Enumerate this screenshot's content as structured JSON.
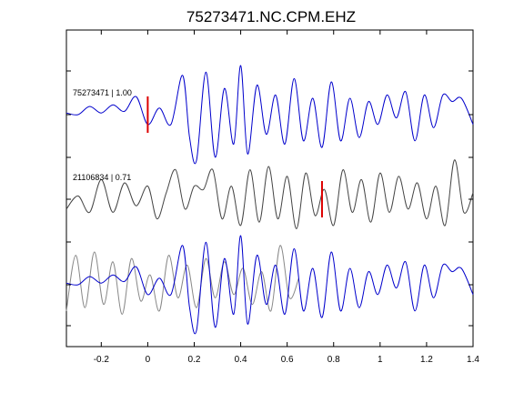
{
  "chart_data": {
    "type": "line",
    "title": "75273471.NC.CPM.EHZ",
    "xlabel": "",
    "ylabel": "",
    "xlim": [
      -0.35,
      1.4
    ],
    "x_ticks": [
      -0.2,
      0,
      0.2,
      0.4,
      0.6,
      0.8,
      1,
      1.2,
      1.4
    ],
    "x_tick_labels": [
      "-0.2",
      "0",
      "0.2",
      "0.4",
      "0.6",
      "0.8",
      "1",
      "1.2",
      "1.4"
    ],
    "grid": false,
    "panels": [
      {
        "label": "75273471 | 1.00",
        "color": "#0000cc",
        "pick_time": 0.0,
        "pick_color": "#dd0000",
        "x": [
          -0.35,
          -0.3,
          -0.25,
          -0.2,
          -0.15,
          -0.1,
          -0.05,
          0.0,
          0.05,
          0.1,
          0.15,
          0.18,
          0.21,
          0.25,
          0.29,
          0.33,
          0.37,
          0.4,
          0.43,
          0.47,
          0.51,
          0.55,
          0.59,
          0.63,
          0.67,
          0.71,
          0.75,
          0.79,
          0.83,
          0.87,
          0.91,
          0.95,
          0.99,
          1.03,
          1.07,
          1.11,
          1.15,
          1.19,
          1.23,
          1.27,
          1.31,
          1.35,
          1.4
        ],
        "y": [
          0.05,
          0.0,
          0.25,
          0.05,
          0.3,
          0.1,
          0.55,
          -0.3,
          0.2,
          -0.3,
          1.2,
          -0.7,
          -1.4,
          1.3,
          -1.3,
          0.8,
          -0.9,
          1.5,
          -1.2,
          0.9,
          -0.6,
          0.6,
          -0.9,
          1.1,
          -0.8,
          0.5,
          -1.0,
          1.0,
          -0.8,
          0.5,
          -0.7,
          0.4,
          -0.3,
          0.6,
          -0.1,
          0.7,
          -0.8,
          0.6,
          -0.4,
          0.6,
          0.4,
          0.5,
          -0.3
        ]
      },
      {
        "label": "21106834 | 0.71",
        "color": "#444444",
        "pick_time": 0.75,
        "pick_color": "#dd0000",
        "x": [
          -0.35,
          -0.3,
          -0.25,
          -0.2,
          -0.15,
          -0.1,
          -0.05,
          0.0,
          0.04,
          0.08,
          0.12,
          0.16,
          0.2,
          0.24,
          0.28,
          0.32,
          0.36,
          0.4,
          0.44,
          0.48,
          0.52,
          0.56,
          0.6,
          0.64,
          0.68,
          0.72,
          0.76,
          0.8,
          0.84,
          0.88,
          0.92,
          0.96,
          1.0,
          1.04,
          1.08,
          1.12,
          1.16,
          1.2,
          1.24,
          1.28,
          1.32,
          1.36,
          1.4
        ],
        "y": [
          -0.3,
          0.1,
          -0.4,
          0.6,
          -0.4,
          0.5,
          -0.2,
          0.4,
          -0.6,
          0.2,
          0.9,
          -0.3,
          0.4,
          0.3,
          0.9,
          -0.6,
          0.4,
          -0.8,
          0.9,
          -0.7,
          1.0,
          -0.6,
          0.7,
          -0.9,
          0.8,
          -0.5,
          0.3,
          -0.8,
          0.9,
          -0.4,
          0.6,
          -0.7,
          0.8,
          -0.4,
          0.7,
          -0.3,
          0.5,
          -0.6,
          0.4,
          -0.8,
          1.2,
          -0.4,
          0.2
        ]
      }
    ]
  }
}
